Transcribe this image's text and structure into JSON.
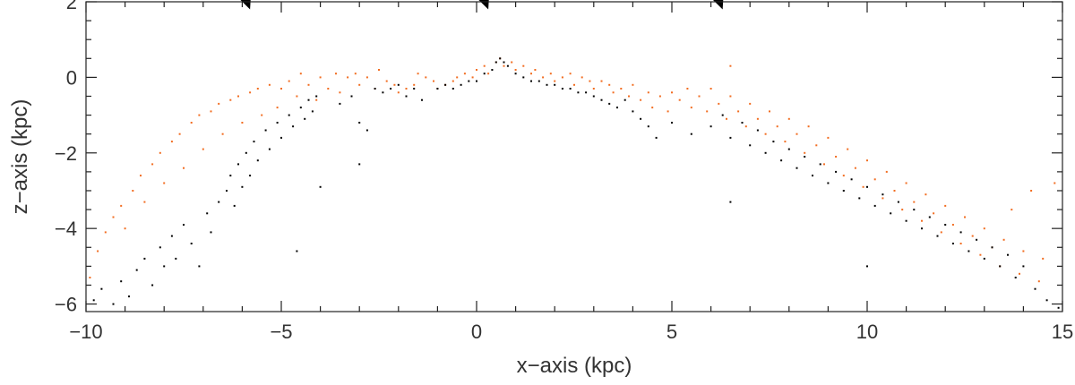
{
  "chart_data": {
    "type": "scatter",
    "title": "",
    "xlabel": "x−axis (kpc)",
    "ylabel": "z−axis (kpc)",
    "xlim": [
      -10,
      15
    ],
    "ylim": [
      -6.2,
      2
    ],
    "x_ticks": [
      -10,
      -5,
      0,
      5,
      10,
      15
    ],
    "x_tick_labels": [
      "−10",
      "−5",
      "0",
      "5",
      "10",
      "15"
    ],
    "y_ticks": [
      -6,
      -4,
      -2,
      0,
      2
    ],
    "y_tick_labels": [
      "−6",
      "−4",
      "−2",
      "0",
      "2"
    ],
    "grid": false,
    "legend": "none",
    "series": [
      {
        "color": "#f26d21",
        "points": [
          [
            -9.9,
            -5.3
          ],
          [
            -9.7,
            -4.6
          ],
          [
            -9.5,
            -4.1
          ],
          [
            -9.3,
            -3.7
          ],
          [
            -9.1,
            -3.4
          ],
          [
            -9.0,
            -4.0
          ],
          [
            -8.8,
            -3.0
          ],
          [
            -8.6,
            -2.6
          ],
          [
            -8.5,
            -3.3
          ],
          [
            -8.3,
            -2.3
          ],
          [
            -8.1,
            -2.0
          ],
          [
            -8.0,
            -2.8
          ],
          [
            -7.8,
            -1.7
          ],
          [
            -7.6,
            -1.5
          ],
          [
            -7.5,
            -2.4
          ],
          [
            -7.3,
            -1.2
          ],
          [
            -7.1,
            -1.0
          ],
          [
            -7.0,
            -1.9
          ],
          [
            -6.8,
            -0.9
          ],
          [
            -6.6,
            -0.7
          ],
          [
            -6.5,
            -1.5
          ],
          [
            -6.3,
            -0.6
          ],
          [
            -6.1,
            -0.5
          ],
          [
            -6.0,
            -1.2
          ],
          [
            -5.8,
            -0.4
          ],
          [
            -5.6,
            -0.3
          ],
          [
            -5.5,
            -1.0
          ],
          [
            -5.3,
            -0.2
          ],
          [
            -5.1,
            -0.8
          ],
          [
            -5.0,
            -0.3
          ],
          [
            -4.8,
            -0.1
          ],
          [
            -4.6,
            -0.5
          ],
          [
            -4.5,
            0.1
          ],
          [
            -4.3,
            -0.2
          ],
          [
            -4.1,
            -0.6
          ],
          [
            -4.0,
            0.0
          ],
          [
            -3.8,
            -0.3
          ],
          [
            -3.6,
            0.1
          ],
          [
            -3.5,
            -0.4
          ],
          [
            -3.3,
            0.0
          ],
          [
            -3.1,
            0.1
          ],
          [
            -3.0,
            -0.2
          ],
          [
            -2.8,
            0.0
          ],
          [
            -2.6,
            -0.3
          ],
          [
            -2.5,
            0.2
          ],
          [
            -2.3,
            -0.1
          ],
          [
            -2.1,
            -0.2
          ],
          [
            -2.0,
            -0.4
          ],
          [
            -1.8,
            -0.3
          ],
          [
            -1.6,
            -0.2
          ],
          [
            -1.5,
            0.1
          ],
          [
            -1.3,
            0.0
          ],
          [
            -1.1,
            -0.1
          ],
          [
            -1.0,
            -0.3
          ],
          [
            -0.8,
            -0.2
          ],
          [
            -0.6,
            -0.1
          ],
          [
            -0.5,
            0.0
          ],
          [
            -0.3,
            0.1
          ],
          [
            -0.1,
            0.0
          ],
          [
            0.0,
            0.2
          ],
          [
            0.2,
            0.3
          ],
          [
            0.3,
            0.1
          ],
          [
            0.5,
            0.4
          ],
          [
            0.6,
            0.5
          ],
          [
            0.7,
            0.3
          ],
          [
            0.9,
            0.4
          ],
          [
            1.0,
            0.2
          ],
          [
            1.2,
            0.3
          ],
          [
            1.4,
            0.1
          ],
          [
            1.5,
            0.2
          ],
          [
            1.7,
            0.0
          ],
          [
            1.9,
            0.1
          ],
          [
            2.0,
            -0.1
          ],
          [
            2.2,
            0.0
          ],
          [
            2.4,
            0.1
          ],
          [
            2.5,
            -0.2
          ],
          [
            2.7,
            0.0
          ],
          [
            2.9,
            -0.1
          ],
          [
            3.0,
            -0.3
          ],
          [
            3.2,
            -0.1
          ],
          [
            3.4,
            -0.2
          ],
          [
            3.5,
            -0.4
          ],
          [
            3.7,
            -0.3
          ],
          [
            3.9,
            -0.5
          ],
          [
            4.0,
            -0.2
          ],
          [
            4.2,
            -0.6
          ],
          [
            4.4,
            -0.4
          ],
          [
            4.5,
            -0.8
          ],
          [
            4.7,
            -0.5
          ],
          [
            4.9,
            -0.9
          ],
          [
            5.0,
            -0.4
          ],
          [
            5.2,
            -0.6
          ],
          [
            5.4,
            -0.3
          ],
          [
            5.5,
            -0.8
          ],
          [
            5.7,
            -0.5
          ],
          [
            5.9,
            -0.9
          ],
          [
            6.0,
            -0.3
          ],
          [
            6.2,
            -0.7
          ],
          [
            6.4,
            -1.1
          ],
          [
            6.5,
            -0.5
          ],
          [
            6.7,
            -0.9
          ],
          [
            6.9,
            -1.3
          ],
          [
            7.0,
            -0.7
          ],
          [
            7.2,
            -1.1
          ],
          [
            7.4,
            -1.5
          ],
          [
            7.5,
            -0.9
          ],
          [
            7.7,
            -1.3
          ],
          [
            7.9,
            -1.7
          ],
          [
            8.0,
            -1.1
          ],
          [
            8.2,
            -1.5
          ],
          [
            8.4,
            -2.0
          ],
          [
            8.5,
            -1.3
          ],
          [
            8.7,
            -1.8
          ],
          [
            8.9,
            -2.3
          ],
          [
            9.0,
            -1.6
          ],
          [
            9.2,
            -2.1
          ],
          [
            9.4,
            -2.6
          ],
          [
            9.5,
            -1.9
          ],
          [
            9.7,
            -2.4
          ],
          [
            9.9,
            -2.9
          ],
          [
            10.0,
            -2.2
          ],
          [
            10.2,
            -2.7
          ],
          [
            10.4,
            -3.2
          ],
          [
            10.5,
            -2.5
          ],
          [
            10.7,
            -3.0
          ],
          [
            10.9,
            -3.5
          ],
          [
            11.0,
            -2.8
          ],
          [
            11.2,
            -3.3
          ],
          [
            11.4,
            -3.8
          ],
          [
            11.5,
            -3.1
          ],
          [
            11.7,
            -3.6
          ],
          [
            11.9,
            -4.1
          ],
          [
            12.0,
            -3.4
          ],
          [
            12.2,
            -3.9
          ],
          [
            12.4,
            -4.4
          ],
          [
            12.5,
            -3.7
          ],
          [
            12.7,
            -4.2
          ],
          [
            12.9,
            -4.7
          ],
          [
            13.0,
            -4.0
          ],
          [
            13.2,
            -4.5
          ],
          [
            13.4,
            -5.0
          ],
          [
            13.5,
            -4.3
          ],
          [
            13.7,
            -3.5
          ],
          [
            13.9,
            -5.2
          ],
          [
            14.0,
            -4.6
          ],
          [
            14.2,
            -3.0
          ],
          [
            14.4,
            -5.4
          ],
          [
            14.5,
            -4.8
          ],
          [
            14.8,
            -2.8
          ],
          [
            6.5,
            0.3
          ]
        ]
      },
      {
        "color": "#000000",
        "points": [
          [
            -9.8,
            -5.9
          ],
          [
            -9.6,
            -5.6
          ],
          [
            -9.3,
            -6.0
          ],
          [
            -9.1,
            -5.4
          ],
          [
            -8.9,
            -5.8
          ],
          [
            -8.7,
            -5.1
          ],
          [
            -8.5,
            -4.8
          ],
          [
            -8.3,
            -5.5
          ],
          [
            -8.1,
            -4.5
          ],
          [
            -8.0,
            -5.0
          ],
          [
            -7.8,
            -4.2
          ],
          [
            -7.7,
            -4.8
          ],
          [
            -7.5,
            -3.9
          ],
          [
            -7.3,
            -4.4
          ],
          [
            -7.1,
            -5.0
          ],
          [
            -6.9,
            -3.6
          ],
          [
            -6.8,
            -4.1
          ],
          [
            -6.6,
            -3.3
          ],
          [
            -6.4,
            -3.0
          ],
          [
            -6.3,
            -2.6
          ],
          [
            -6.2,
            -3.4
          ],
          [
            -6.1,
            -2.3
          ],
          [
            -6.0,
            -2.9
          ],
          [
            -5.9,
            -2.0
          ],
          [
            -5.8,
            -2.6
          ],
          [
            -5.7,
            -1.7
          ],
          [
            -5.6,
            -2.2
          ],
          [
            -5.4,
            -1.4
          ],
          [
            -5.3,
            -1.9
          ],
          [
            -5.1,
            -1.2
          ],
          [
            -5.0,
            -1.6
          ],
          [
            -4.8,
            -1.0
          ],
          [
            -4.7,
            -1.3
          ],
          [
            -4.5,
            -0.8
          ],
          [
            -4.4,
            -1.1
          ],
          [
            -4.3,
            -0.6
          ],
          [
            -4.2,
            -0.9
          ],
          [
            -4.1,
            -0.5
          ],
          [
            -4.0,
            -2.9
          ],
          [
            -3.5,
            -0.7
          ],
          [
            -3.2,
            -0.5
          ],
          [
            -3.0,
            -1.2
          ],
          [
            -2.8,
            -1.4
          ],
          [
            -2.6,
            -0.3
          ],
          [
            -2.4,
            -0.4
          ],
          [
            -2.2,
            -0.3
          ],
          [
            -2.0,
            -0.2
          ],
          [
            -1.8,
            -0.5
          ],
          [
            -1.6,
            -0.3
          ],
          [
            -1.4,
            -0.6
          ],
          [
            -1.0,
            -0.3
          ],
          [
            -0.8,
            -0.2
          ],
          [
            -0.6,
            -0.3
          ],
          [
            -0.4,
            -0.2
          ],
          [
            -0.2,
            -0.1
          ],
          [
            0.0,
            -0.1
          ],
          [
            0.2,
            0.1
          ],
          [
            0.4,
            0.2
          ],
          [
            0.5,
            0.4
          ],
          [
            0.6,
            0.5
          ],
          [
            0.7,
            0.4
          ],
          [
            0.8,
            0.3
          ],
          [
            1.0,
            0.1
          ],
          [
            1.2,
            0.0
          ],
          [
            1.4,
            -0.1
          ],
          [
            1.6,
            -0.1
          ],
          [
            1.8,
            -0.2
          ],
          [
            2.0,
            -0.2
          ],
          [
            2.2,
            -0.3
          ],
          [
            2.4,
            -0.3
          ],
          [
            2.6,
            -0.4
          ],
          [
            2.8,
            -0.4
          ],
          [
            3.0,
            -0.5
          ],
          [
            3.2,
            -0.6
          ],
          [
            3.4,
            -0.7
          ],
          [
            3.6,
            -0.8
          ],
          [
            3.8,
            -0.6
          ],
          [
            4.0,
            -0.9
          ],
          [
            4.2,
            -1.1
          ],
          [
            4.4,
            -1.3
          ],
          [
            4.6,
            -1.6
          ],
          [
            5.0,
            -1.2
          ],
          [
            5.5,
            -1.5
          ],
          [
            6.0,
            -1.3
          ],
          [
            6.3,
            -1.0
          ],
          [
            6.5,
            -1.6
          ],
          [
            6.8,
            -1.2
          ],
          [
            7.0,
            -1.8
          ],
          [
            7.2,
            -1.4
          ],
          [
            7.4,
            -2.0
          ],
          [
            7.6,
            -1.7
          ],
          [
            7.8,
            -2.2
          ],
          [
            8.0,
            -1.9
          ],
          [
            8.2,
            -2.4
          ],
          [
            8.4,
            -2.1
          ],
          [
            8.6,
            -2.6
          ],
          [
            8.8,
            -2.3
          ],
          [
            9.0,
            -2.8
          ],
          [
            9.2,
            -2.5
          ],
          [
            9.4,
            -3.0
          ],
          [
            9.6,
            -2.7
          ],
          [
            9.8,
            -3.2
          ],
          [
            10.0,
            -2.9
          ],
          [
            10.2,
            -3.4
          ],
          [
            10.4,
            -3.1
          ],
          [
            10.6,
            -3.6
          ],
          [
            10.8,
            -3.3
          ],
          [
            11.0,
            -3.8
          ],
          [
            11.2,
            -3.5
          ],
          [
            11.4,
            -4.0
          ],
          [
            11.6,
            -3.7
          ],
          [
            11.8,
            -4.2
          ],
          [
            12.0,
            -3.9
          ],
          [
            12.2,
            -4.4
          ],
          [
            12.4,
            -4.1
          ],
          [
            12.6,
            -4.6
          ],
          [
            12.8,
            -4.3
          ],
          [
            13.0,
            -4.8
          ],
          [
            13.2,
            -4.5
          ],
          [
            13.4,
            -5.0
          ],
          [
            13.6,
            -4.7
          ],
          [
            13.8,
            -5.3
          ],
          [
            14.0,
            -5.0
          ],
          [
            14.3,
            -5.6
          ],
          [
            14.6,
            -5.9
          ],
          [
            14.9,
            -6.1
          ],
          [
            10.0,
            -5.0
          ],
          [
            6.5,
            -3.3
          ],
          [
            -3.0,
            -2.3
          ],
          [
            -4.6,
            -4.6
          ]
        ]
      }
    ],
    "arrows": [
      {
        "tip": [
          -5.8,
          1.8
        ],
        "tail": [
          -6.1,
          2.6
        ]
      },
      {
        "tip": [
          0.3,
          1.8
        ],
        "tail": [
          0.0,
          2.6
        ]
      },
      {
        "tip": [
          6.3,
          1.8
        ],
        "tail": [
          6.0,
          2.6
        ]
      }
    ]
  }
}
